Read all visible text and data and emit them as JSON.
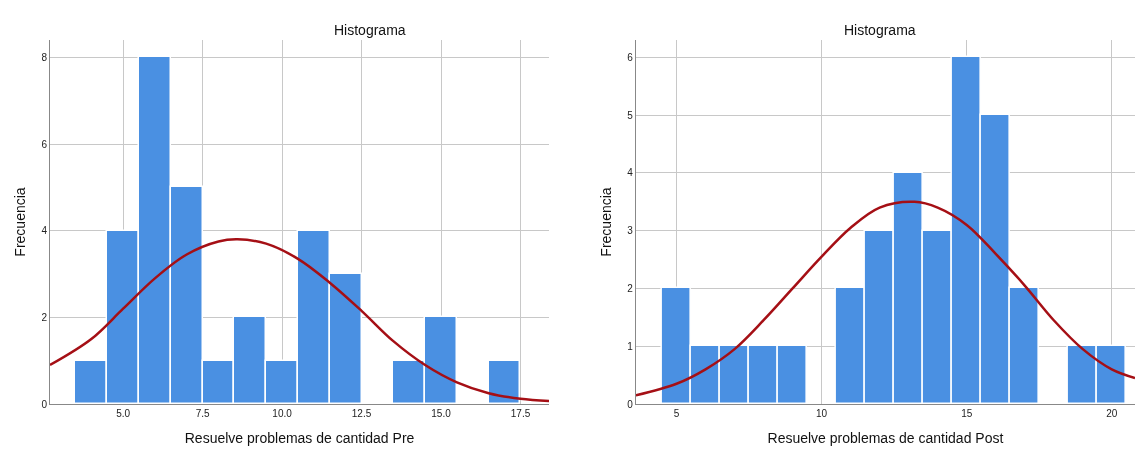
{
  "chart_data": [
    {
      "type": "histogram",
      "title": "Histograma",
      "xlabel": "Resuelve problemas de cantidad Pre",
      "ylabel": "Frecuencia",
      "color": "#4a90e2",
      "bins": [
        3.5,
        4.5,
        5.5,
        6.5,
        7.5,
        8.5,
        9.5,
        10.5,
        11.5,
        12.5,
        13.5,
        14.5,
        15.5,
        16.5,
        17.5
      ],
      "values": [
        1,
        4,
        8,
        5,
        1,
        2,
        1,
        4,
        3,
        0,
        1,
        2,
        0,
        1
      ],
      "series": [
        {
          "type": "line",
          "color": "#a50f15",
          "x": [
            2.7,
            4,
            5,
            6,
            7,
            8,
            8.6,
            9.5,
            10.5,
            11.5,
            12.5,
            13.5,
            14.5,
            15.5,
            16.5,
            17.5,
            18.4
          ],
          "values": [
            0.9,
            1.5,
            2.2,
            2.9,
            3.45,
            3.75,
            3.8,
            3.7,
            3.35,
            2.8,
            2.15,
            1.45,
            0.9,
            0.5,
            0.25,
            0.12,
            0.07
          ]
        }
      ],
      "xlim": [
        2.7,
        18.4
      ],
      "ylim": [
        0,
        8.4
      ],
      "xticks": [
        {
          "value": 5,
          "label": "5.0"
        },
        {
          "value": 7.5,
          "label": "7.5"
        },
        {
          "value": 10,
          "label": "10.0"
        },
        {
          "value": 12.5,
          "label": "12.5"
        },
        {
          "value": 15,
          "label": "15.0"
        },
        {
          "value": 17.5,
          "label": "17.5"
        }
      ],
      "yticks": [
        0,
        2,
        4,
        6,
        8
      ],
      "grid": true
    },
    {
      "type": "histogram",
      "title": "Histograma",
      "xlabel": "Resuelve problemas de cantidad Post",
      "ylabel": "Frecuencia",
      "color": "#4a90e2",
      "bins": [
        4.5,
        5.5,
        6.5,
        7.5,
        8.5,
        9.5,
        10.5,
        11.5,
        12.5,
        13.5,
        14.5,
        15.5,
        16.5,
        17.5,
        18.5,
        19.5,
        20.5
      ],
      "values": [
        2,
        1,
        1,
        1,
        1,
        0,
        2,
        3,
        4,
        3,
        6,
        5,
        2,
        0,
        1,
        1
      ],
      "series": [
        {
          "type": "line",
          "color": "#a50f15",
          "x": [
            3.6,
            5,
            6,
            7,
            8,
            9,
            10,
            11,
            12,
            13.2,
            14,
            15,
            16,
            17,
            18,
            19,
            20,
            20.8
          ],
          "values": [
            0.15,
            0.35,
            0.6,
            0.95,
            1.45,
            2.0,
            2.55,
            3.05,
            3.4,
            3.5,
            3.4,
            3.1,
            2.6,
            2.05,
            1.45,
            0.95,
            0.6,
            0.45
          ]
        }
      ],
      "xlim": [
        3.6,
        20.8
      ],
      "ylim": [
        0,
        6.3
      ],
      "xticks": [
        5,
        10,
        15,
        20
      ],
      "yticks": [
        0,
        1,
        2,
        3,
        4,
        5,
        6
      ],
      "grid": true
    }
  ]
}
